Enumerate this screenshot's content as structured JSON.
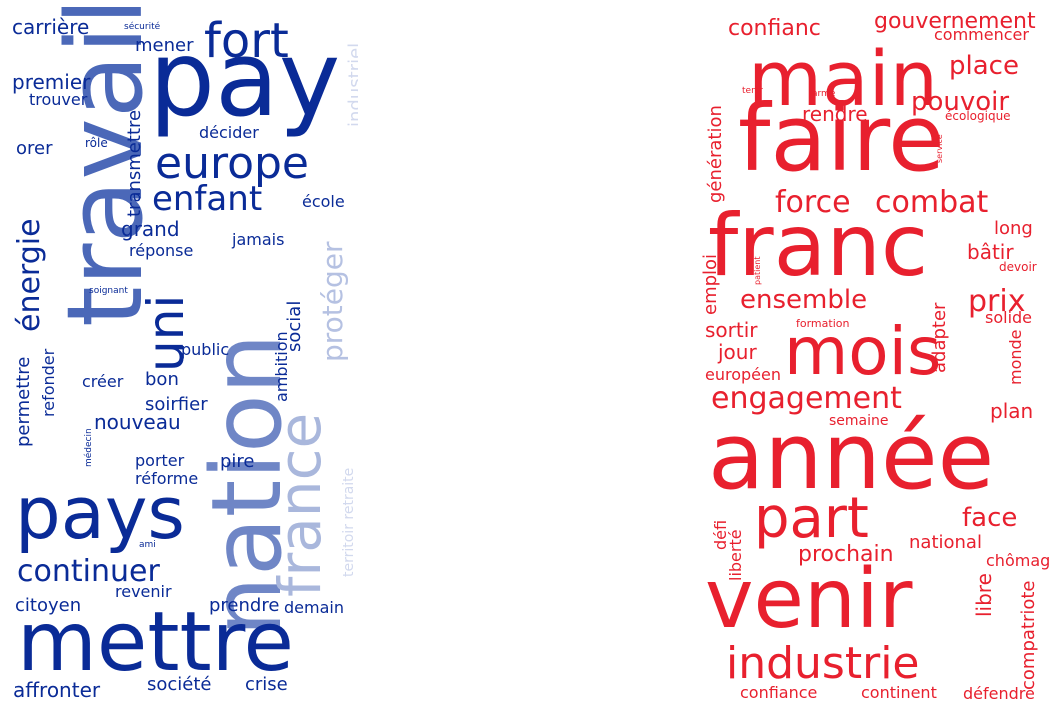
{
  "clouds": [
    {
      "id": "left",
      "colors": {
        "dark": "#0a2b97",
        "mid": "#4b68b8",
        "light": "#a9b7dc",
        "pale": "#d2d9ee"
      },
      "words": [
        {
          "text": "travail",
          "color": "#4b68b8"
        },
        {
          "text": "nation",
          "color": "#6f86c6"
        },
        {
          "text": "pay",
          "color": "#0a2b97"
        },
        {
          "text": "mettre",
          "color": "#0a2b97"
        },
        {
          "text": "pays",
          "color": "#0a2b97"
        },
        {
          "text": "fort",
          "color": "#0a2b97"
        },
        {
          "text": "europe",
          "color": "#0a2b97"
        },
        {
          "text": "france",
          "color": "#a9b7dc"
        },
        {
          "text": "uni",
          "color": "#0a2b97"
        },
        {
          "text": "enfant",
          "color": "#0a2b97"
        },
        {
          "text": "énergie",
          "color": "#0a2b97"
        },
        {
          "text": "continuer",
          "color": "#0a2b97"
        },
        {
          "text": "protéger",
          "color": "#b5c1e2"
        },
        {
          "text": "carrière",
          "color": "#0a2b97"
        },
        {
          "text": "mener",
          "color": "#0a2b97"
        },
        {
          "text": "sécurité",
          "color": "#0a2b97"
        },
        {
          "text": "industriel",
          "color": "#d2d9ee"
        },
        {
          "text": "premier",
          "color": "#0a2b97"
        },
        {
          "text": "trouver",
          "color": "#0a2b97"
        },
        {
          "text": "transmettre",
          "color": "#0a2b97"
        },
        {
          "text": "décider",
          "color": "#0a2b97"
        },
        {
          "text": "rôle",
          "color": "#0a2b97"
        },
        {
          "text": "orer",
          "color": "#0a2b97"
        },
        {
          "text": "école",
          "color": "#0a2b97"
        },
        {
          "text": "grand",
          "color": "#0a2b97"
        },
        {
          "text": "jamais",
          "color": "#0a2b97"
        },
        {
          "text": "réponse",
          "color": "#0a2b97"
        },
        {
          "text": "social",
          "color": "#0a2b97"
        },
        {
          "text": "soignant",
          "color": "#0a2b97"
        },
        {
          "text": "ambition",
          "color": "#0a2b97"
        },
        {
          "text": "public",
          "color": "#0a2b97"
        },
        {
          "text": "permettre",
          "color": "#0a2b97"
        },
        {
          "text": "refonder",
          "color": "#0a2b97"
        },
        {
          "text": "créer",
          "color": "#0a2b97"
        },
        {
          "text": "bon",
          "color": "#0a2b97"
        },
        {
          "text": "soirfier",
          "color": "#0a2b97"
        },
        {
          "text": "territoir retraite",
          "color": "#d2d9ee"
        },
        {
          "text": "nouveau",
          "color": "#0a2b97"
        },
        {
          "text": "médecin",
          "color": "#0a2b97"
        },
        {
          "text": "porter",
          "color": "#0a2b97"
        },
        {
          "text": "pire",
          "color": "#0a2b97"
        },
        {
          "text": "réforme",
          "color": "#0a2b97"
        },
        {
          "text": "ami",
          "color": "#0a2b97"
        },
        {
          "text": "citoyen",
          "color": "#0a2b97"
        },
        {
          "text": "revenir",
          "color": "#0a2b97"
        },
        {
          "text": "prendre",
          "color": "#0a2b97"
        },
        {
          "text": "demain",
          "color": "#0a2b97"
        },
        {
          "text": "affronter",
          "color": "#0a2b97"
        },
        {
          "text": "société",
          "color": "#0a2b97"
        },
        {
          "text": "crise",
          "color": "#0a2b97"
        }
      ]
    },
    {
      "id": "right",
      "colors": {
        "red": "#e8202e",
        "light": "#f06a72"
      },
      "words": [
        {
          "text": "confianc",
          "color": "#e8202e"
        },
        {
          "text": "gouvernement",
          "color": "#e8202e"
        },
        {
          "text": "commencer",
          "color": "#e8202e"
        },
        {
          "text": "main",
          "color": "#e8202e"
        },
        {
          "text": "place",
          "color": "#e8202e"
        },
        {
          "text": "génération",
          "color": "#e8202e"
        },
        {
          "text": "tenir",
          "color": "#e8202e"
        },
        {
          "text": "armé",
          "color": "#e8202e"
        },
        {
          "text": "pouvoir",
          "color": "#e8202e"
        },
        {
          "text": "rendre",
          "color": "#e8202e"
        },
        {
          "text": "écologique",
          "color": "#e8202e"
        },
        {
          "text": "service",
          "color": "#e8202e"
        },
        {
          "text": "faire",
          "color": "#e8202e"
        },
        {
          "text": "force",
          "color": "#e8202e"
        },
        {
          "text": "combat",
          "color": "#e8202e"
        },
        {
          "text": "franc",
          "color": "#e8202e"
        },
        {
          "text": "long",
          "color": "#e8202e"
        },
        {
          "text": "patient",
          "color": "#e8202e"
        },
        {
          "text": "bâtir",
          "color": "#e8202e"
        },
        {
          "text": "devoir",
          "color": "#e8202e"
        },
        {
          "text": "emploi",
          "color": "#e8202e"
        },
        {
          "text": "ensemble",
          "color": "#e8202e"
        },
        {
          "text": "prix",
          "color": "#e8202e"
        },
        {
          "text": "formation",
          "color": "#e8202e"
        },
        {
          "text": "solide",
          "color": "#e8202e"
        },
        {
          "text": "sortir",
          "color": "#e8202e"
        },
        {
          "text": "mois",
          "color": "#e8202e"
        },
        {
          "text": "adapter",
          "color": "#e8202e"
        },
        {
          "text": "jour",
          "color": "#e8202e"
        },
        {
          "text": "monde",
          "color": "#e8202e"
        },
        {
          "text": "européen",
          "color": "#e8202e"
        },
        {
          "text": "engagement",
          "color": "#e8202e"
        },
        {
          "text": "plan",
          "color": "#e8202e"
        },
        {
          "text": "semaine",
          "color": "#e8202e"
        },
        {
          "text": "année",
          "color": "#e8202e"
        },
        {
          "text": "part",
          "color": "#e8202e"
        },
        {
          "text": "face",
          "color": "#e8202e"
        },
        {
          "text": "défi",
          "color": "#e8202e"
        },
        {
          "text": "liberté",
          "color": "#e8202e"
        },
        {
          "text": "national",
          "color": "#e8202e"
        },
        {
          "text": "prochain",
          "color": "#e8202e"
        },
        {
          "text": "chômage",
          "color": "#e8202e"
        },
        {
          "text": "libre",
          "color": "#e8202e"
        },
        {
          "text": "compatriote",
          "color": "#e8202e"
        },
        {
          "text": "venir",
          "color": "#e8202e"
        },
        {
          "text": "industrie",
          "color": "#e8202e"
        },
        {
          "text": "confiance",
          "color": "#e8202e"
        },
        {
          "text": "continent",
          "color": "#e8202e"
        },
        {
          "text": "défendre",
          "color": "#e8202e"
        }
      ]
    }
  ]
}
